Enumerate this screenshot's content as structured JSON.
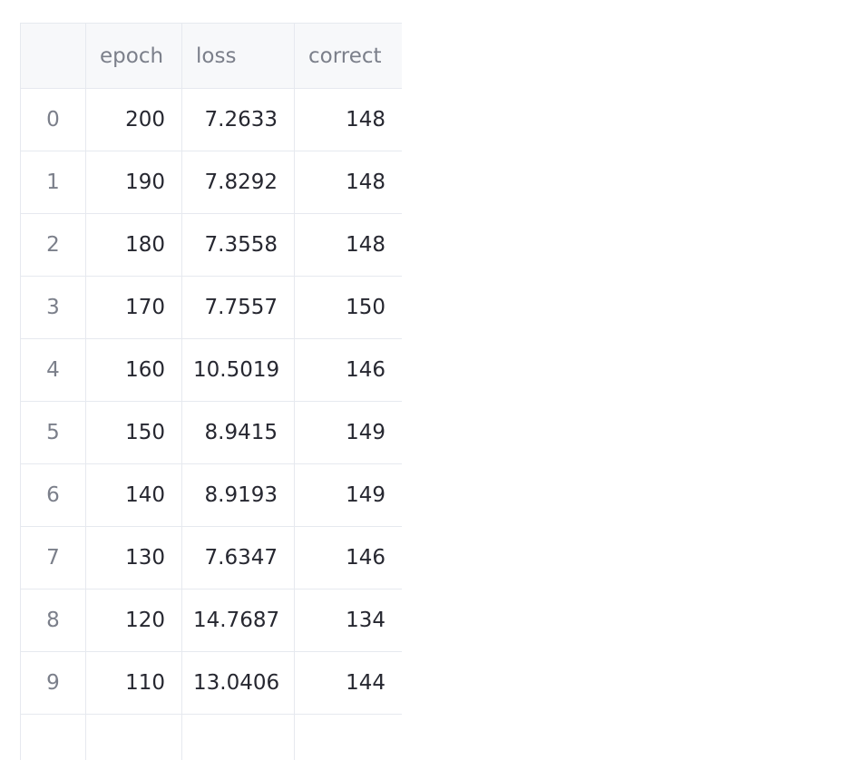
{
  "table": {
    "columns": [
      "",
      "epoch",
      "loss",
      "correct"
    ],
    "rows": [
      {
        "index": "0",
        "epoch": "200",
        "loss": "7.2633",
        "correct": "148"
      },
      {
        "index": "1",
        "epoch": "190",
        "loss": "7.8292",
        "correct": "148"
      },
      {
        "index": "2",
        "epoch": "180",
        "loss": "7.3558",
        "correct": "148"
      },
      {
        "index": "3",
        "epoch": "170",
        "loss": "7.7557",
        "correct": "150"
      },
      {
        "index": "4",
        "epoch": "160",
        "loss": "10.5019",
        "correct": "146"
      },
      {
        "index": "5",
        "epoch": "150",
        "loss": "8.9415",
        "correct": "149"
      },
      {
        "index": "6",
        "epoch": "140",
        "loss": "8.9193",
        "correct": "149"
      },
      {
        "index": "7",
        "epoch": "130",
        "loss": "7.6347",
        "correct": "146"
      },
      {
        "index": "8",
        "epoch": "120",
        "loss": "14.7687",
        "correct": "134"
      },
      {
        "index": "9",
        "epoch": "110",
        "loss": "13.0406",
        "correct": "144"
      }
    ]
  },
  "colors": {
    "header_background": "#f7f8fa",
    "grid_line": "#e6e9ef",
    "text": "#262730",
    "muted_text": "#7b7f8a"
  }
}
